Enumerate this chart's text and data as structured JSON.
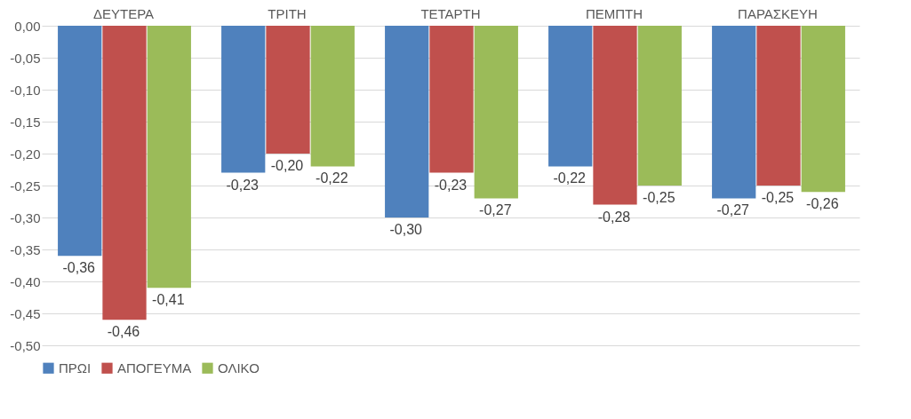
{
  "chart_data": {
    "type": "bar",
    "categories": [
      "ΔΕΥΤΕΡΑ",
      "ΤΡΙΤΗ",
      "ΤΕΤΑΡΤΗ",
      "ΠΕΜΠΤΗ",
      "ΠΑΡΑΣΚΕΥΗ"
    ],
    "series": [
      {
        "name": "ΠΡΩΙ",
        "color": "#4f81bd",
        "values": [
          -0.36,
          -0.23,
          -0.3,
          -0.22,
          -0.27
        ],
        "value_labels": [
          "-0,36",
          "-0,23",
          "-0,30",
          "-0,22",
          "-0,27"
        ]
      },
      {
        "name": "ΑΠΟΓΕΥΜΑ",
        "color": "#c0504d",
        "values": [
          -0.46,
          -0.2,
          -0.23,
          -0.28,
          -0.25
        ],
        "value_labels": [
          "-0,46",
          "-0,20",
          "-0,23",
          "-0,28",
          "-0,25"
        ]
      },
      {
        "name": "ΟΛΙΚΟ",
        "color": "#9bbb59",
        "values": [
          -0.41,
          -0.22,
          -0.27,
          -0.25,
          -0.26
        ],
        "value_labels": [
          "-0,41",
          "-0,22",
          "-0,27",
          "-0,25",
          "-0,26"
        ]
      }
    ],
    "ylim": [
      -0.5,
      0
    ],
    "yticks": [
      {
        "value": 0,
        "label": "0,00"
      },
      {
        "value": -0.05,
        "label": "-0,05"
      },
      {
        "value": -0.1,
        "label": "-0,10"
      },
      {
        "value": -0.15,
        "label": "-0,15"
      },
      {
        "value": -0.2,
        "label": "-0,20"
      },
      {
        "value": -0.25,
        "label": "-0,25"
      },
      {
        "value": -0.3,
        "label": "-0,30"
      },
      {
        "value": -0.35,
        "label": "-0,35"
      },
      {
        "value": -0.4,
        "label": "-0,40"
      },
      {
        "value": -0.45,
        "label": "-0,45"
      },
      {
        "value": -0.5,
        "label": "-0,50"
      }
    ],
    "grid": "y",
    "legend": "bottom"
  }
}
